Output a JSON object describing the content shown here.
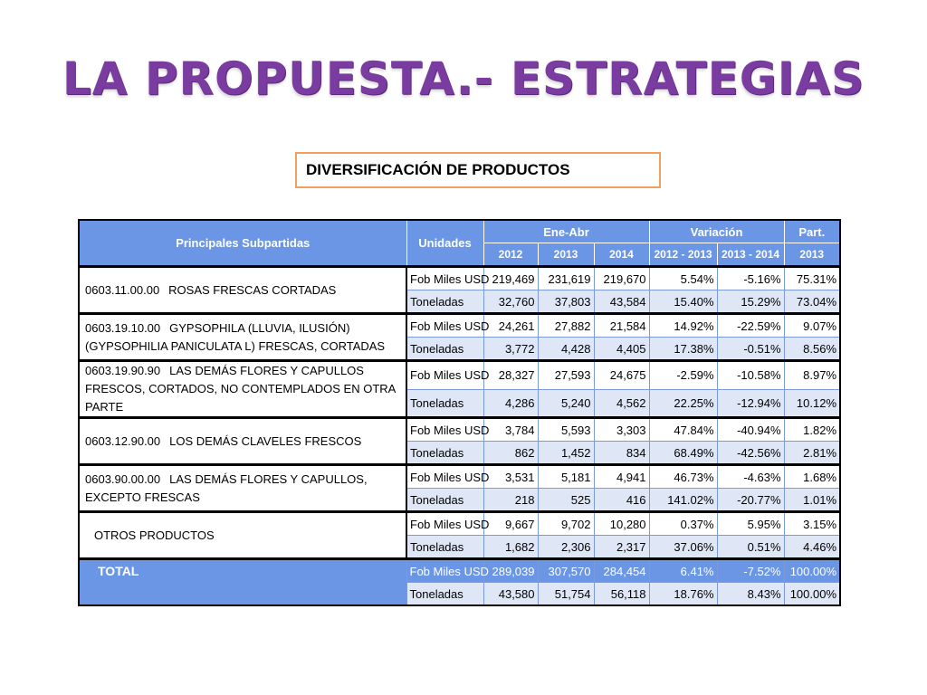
{
  "title": "LA PROPUESTA.- ESTRATEGIAS",
  "subtitle": "DIVERSIFICACIÓN DE PRODUCTOS",
  "table": {
    "headers": {
      "principales": "Principales Subpartidas",
      "unidades": "Unidades",
      "ene_abr": "Ene-Abr",
      "variacion": "Variación",
      "part": "Part.",
      "part_year": "2013",
      "years": [
        "2012",
        "2013",
        "2014"
      ],
      "var_periods": [
        "2012 - 2013",
        "2013 - 2014"
      ]
    },
    "groups": [
      {
        "code": "0603.11.00.00",
        "name": "ROSAS FRESCAS CORTADAS",
        "rows": [
          {
            "unit": "Fob Miles USD",
            "y2012": "219,469",
            "y2013": "231,619",
            "y2014": "219,670",
            "v1": "5.54%",
            "v2": "-5.16%",
            "part": "75.31%"
          },
          {
            "unit": "Toneladas",
            "y2012": "32,760",
            "y2013": "37,803",
            "y2014": "43,584",
            "v1": "15.40%",
            "v2": "15.29%",
            "part": "73.04%"
          }
        ]
      },
      {
        "code": "0603.19.10.00",
        "name": "GYPSOPHILA (LLUVIA, ILUSIÓN) (GYPSOPHILIA PANICULATA L) FRESCAS, CORTADAS",
        "rows": [
          {
            "unit": "Fob Miles USD",
            "y2012": "24,261",
            "y2013": "27,882",
            "y2014": "21,584",
            "v1": "14.92%",
            "v2": "-22.59%",
            "part": "9.07%"
          },
          {
            "unit": "Toneladas",
            "y2012": "3,772",
            "y2013": "4,428",
            "y2014": "4,405",
            "v1": "17.38%",
            "v2": "-0.51%",
            "part": "8.56%"
          }
        ]
      },
      {
        "code": "0603.19.90.90",
        "name": "LAS DEMÁS FLORES Y CAPULLOS FRESCOS, CORTADOS, NO CONTEMPLADOS EN OTRA PARTE",
        "rows": [
          {
            "unit": "Fob Miles USD",
            "y2012": "28,327",
            "y2013": "27,593",
            "y2014": "24,675",
            "v1": "-2.59%",
            "v2": "-10.58%",
            "part": "8.97%"
          },
          {
            "unit": "Toneladas",
            "y2012": "4,286",
            "y2013": "5,240",
            "y2014": "4,562",
            "v1": "22.25%",
            "v2": "-12.94%",
            "part": "10.12%"
          }
        ]
      },
      {
        "code": "0603.12.90.00",
        "name": "LOS DEMÁS CLAVELES FRESCOS",
        "rows": [
          {
            "unit": "Fob Miles USD",
            "y2012": "3,784",
            "y2013": "5,593",
            "y2014": "3,303",
            "v1": "47.84%",
            "v2": "-40.94%",
            "part": "1.82%"
          },
          {
            "unit": "Toneladas",
            "y2012": "862",
            "y2013": "1,452",
            "y2014": "834",
            "v1": "68.49%",
            "v2": "-42.56%",
            "part": "2.81%"
          }
        ]
      },
      {
        "code": "0603.90.00.00",
        "name": "LAS DEMÁS FLORES Y CAPULLOS, EXCEPTO FRESCAS",
        "rows": [
          {
            "unit": "Fob Miles USD",
            "y2012": "3,531",
            "y2013": "5,181",
            "y2014": "4,941",
            "v1": "46.73%",
            "v2": "-4.63%",
            "part": "1.68%"
          },
          {
            "unit": "Toneladas",
            "y2012": "218",
            "y2013": "525",
            "y2014": "416",
            "v1": "141.02%",
            "v2": "-20.77%",
            "part": "1.01%"
          }
        ]
      },
      {
        "code": "",
        "name": "OTROS PRODUCTOS",
        "rows": [
          {
            "unit": "Fob Miles USD",
            "y2012": "9,667",
            "y2013": "9,702",
            "y2014": "10,280",
            "v1": "0.37%",
            "v2": "5.95%",
            "part": "3.15%"
          },
          {
            "unit": "Toneladas",
            "y2012": "1,682",
            "y2013": "2,306",
            "y2014": "2,317",
            "v1": "37.06%",
            "v2": "0.51%",
            "part": "4.46%"
          }
        ]
      }
    ],
    "total": {
      "name": "TOTAL",
      "rows": [
        {
          "unit": "Fob Miles USD",
          "y2012": "289,039",
          "y2013": "307,570",
          "y2014": "284,454",
          "v1": "6.41%",
          "v2": "-7.52%",
          "part": "100.00%"
        },
        {
          "unit": "Toneladas",
          "y2012": "43,580",
          "y2013": "51,754",
          "y2014": "56,118",
          "v1": "18.76%",
          "v2": "8.43%",
          "part": "100.00%"
        }
      ]
    }
  }
}
